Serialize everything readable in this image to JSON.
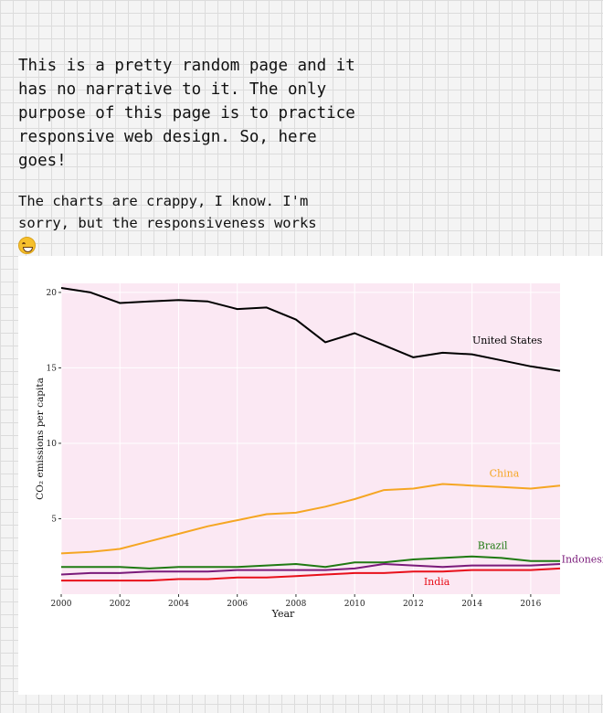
{
  "intro": {
    "paragraph1": "This is a pretty random page and it has no narrative to it. The only purpose of this page is to practice responsive web design. So, here goes!",
    "paragraph2": "The charts are crappy, I know. I'm sorry, but the responsiveness works",
    "emoji_icon": "grinning-face-with-sweat-icon"
  },
  "chart_data": {
    "type": "line",
    "xlabel": "Year",
    "ylabel": "CO₂ emissions per capita",
    "xlim": [
      2000,
      2017
    ],
    "ylim": [
      0,
      20.6
    ],
    "x_ticks": [
      2000,
      2002,
      2004,
      2006,
      2008,
      2010,
      2012,
      2014,
      2016
    ],
    "y_ticks": [
      5,
      10,
      15,
      20
    ],
    "background": "#fbe8f3",
    "grid": true,
    "x": [
      2000,
      2001,
      2002,
      2003,
      2004,
      2005,
      2006,
      2007,
      2008,
      2009,
      2010,
      2011,
      2012,
      2013,
      2014,
      2015,
      2016,
      2017
    ],
    "series": [
      {
        "name": "United States",
        "color": "#000000",
        "values": [
          20.3,
          20.0,
          19.3,
          19.4,
          19.5,
          19.4,
          18.9,
          19.0,
          18.2,
          16.7,
          17.3,
          16.5,
          15.7,
          16.0,
          15.9,
          15.5,
          15.1,
          14.8
        ]
      },
      {
        "name": "China",
        "color": "#f5a623",
        "values": [
          2.7,
          2.8,
          3.0,
          3.5,
          4.0,
          4.5,
          4.9,
          5.3,
          5.4,
          5.8,
          6.3,
          6.9,
          7.0,
          7.3,
          7.2,
          7.1,
          7.0,
          7.2
        ]
      },
      {
        "name": "Brazil",
        "color": "#1f7a12",
        "values": [
          1.8,
          1.8,
          1.8,
          1.7,
          1.8,
          1.8,
          1.8,
          1.9,
          2.0,
          1.8,
          2.1,
          2.1,
          2.3,
          2.4,
          2.5,
          2.4,
          2.2,
          2.2
        ]
      },
      {
        "name": "Indonesia",
        "color": "#7a1a7a",
        "values": [
          1.3,
          1.4,
          1.4,
          1.5,
          1.5,
          1.5,
          1.6,
          1.6,
          1.6,
          1.6,
          1.7,
          2.0,
          1.9,
          1.8,
          1.9,
          1.9,
          1.9,
          2.0
        ]
      },
      {
        "name": "India",
        "color": "#e8101a",
        "values": [
          0.9,
          0.9,
          0.9,
          0.9,
          1.0,
          1.0,
          1.1,
          1.1,
          1.2,
          1.3,
          1.4,
          1.4,
          1.5,
          1.5,
          1.6,
          1.6,
          1.6,
          1.7
        ]
      }
    ]
  }
}
